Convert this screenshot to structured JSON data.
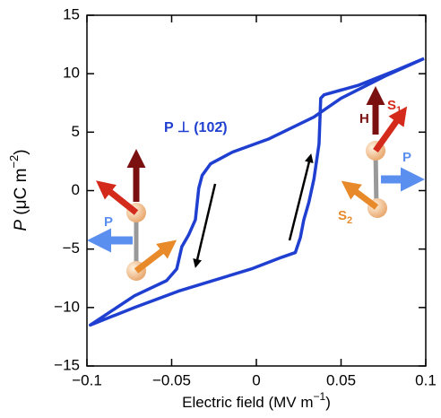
{
  "chart_data": {
    "type": "line",
    "xlabel": [
      "Electric field (MV m",
      "−1",
      ")"
    ],
    "ylabel": [
      "P",
      " (μC m",
      "−2",
      ")"
    ],
    "x": [
      0.099,
      0.076,
      0.05,
      0.034,
      0.007,
      -0.014,
      -0.027,
      -0.032,
      -0.034,
      -0.036,
      -0.04,
      -0.044,
      -0.047,
      -0.053,
      -0.072,
      -0.098,
      -0.072,
      -0.046,
      -0.003,
      0.015,
      0.023,
      0.026,
      0.028,
      0.031,
      0.034,
      0.037,
      0.038,
      0.04,
      0.06,
      0.081,
      0.099
    ],
    "values": [
      11.3,
      9.8,
      7.9,
      6.3,
      4.4,
      3.3,
      2.3,
      1.3,
      0.2,
      -2.5,
      -3.8,
      -4.8,
      -6.7,
      -7.7,
      -9.0,
      -11.5,
      -10.0,
      -8.6,
      -6.7,
      -5.7,
      -5.3,
      -4.0,
      -2.5,
      -1.0,
      1.0,
      4.0,
      7.9,
      8.2,
      9.0,
      10.2,
      11.3
    ],
    "color": "#1f3fd0",
    "xlim": [
      -0.1,
      0.1
    ],
    "ylim": [
      -15,
      15
    ],
    "xticks": [
      {
        "value": -0.1,
        "label": "−0.1"
      },
      {
        "value": -0.05,
        "label": "−0.05"
      },
      0,
      0.05,
      0.1
    ],
    "yticks": [
      {
        "value": -15,
        "label": "−15"
      },
      {
        "value": -10,
        "label": "−10"
      },
      {
        "value": -5,
        "label": "−5"
      },
      0,
      5,
      10,
      15
    ],
    "annotations": [
      {
        "text": "P ⊥ (102̄)"
      },
      {
        "text": "H"
      },
      {
        "text": "S",
        "sub": "1"
      },
      {
        "text": "P"
      },
      {
        "text": "S",
        "sub": "2"
      },
      {
        "text": "P"
      }
    ]
  }
}
